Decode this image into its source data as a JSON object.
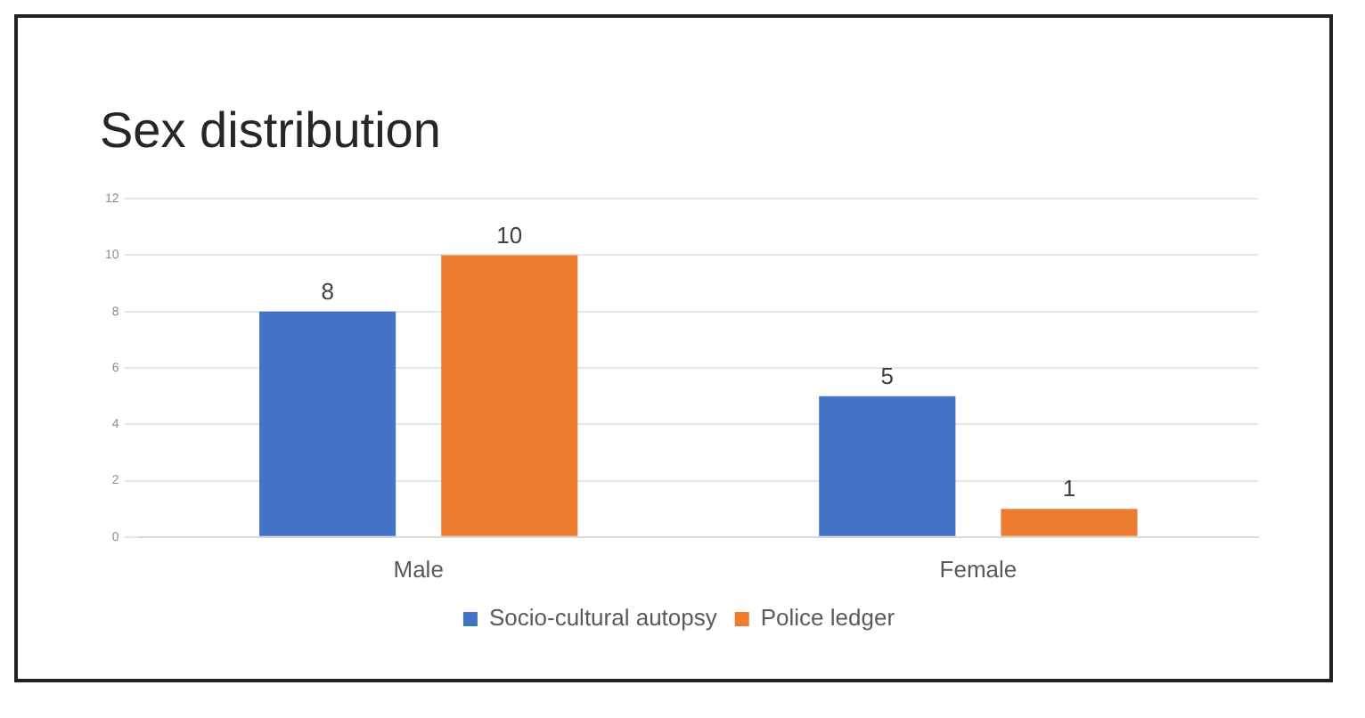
{
  "chart_data": {
    "type": "bar",
    "title": "Sex distribution",
    "categories": [
      "Male",
      "Female"
    ],
    "series": [
      {
        "name": "Socio-cultural autopsy",
        "color": "#4472c4",
        "values": [
          8,
          5
        ]
      },
      {
        "name": "Police ledger",
        "color": "#ed7d31",
        "values": [
          10,
          1
        ]
      }
    ],
    "ylim": [
      0,
      12
    ],
    "yticks": [
      0,
      2,
      4,
      6,
      8,
      10,
      12
    ],
    "grid": "y",
    "legend": "bottom",
    "data_labels": true
  }
}
